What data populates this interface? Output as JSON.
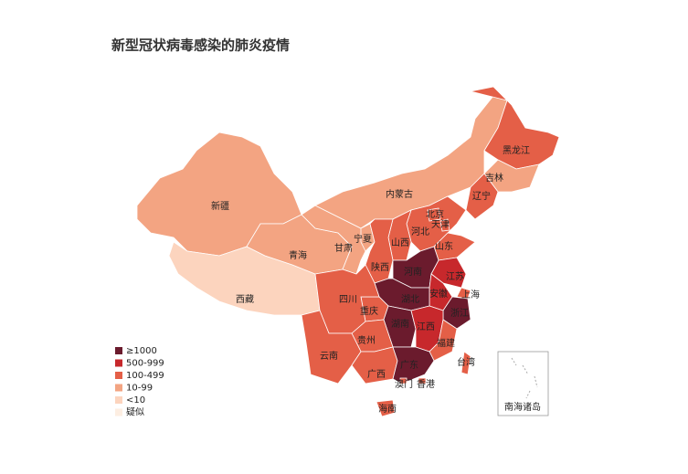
{
  "title": "新型冠状病毒感染的肺炎疫情",
  "legend": [
    {
      "label": "≥1000",
      "color": "#6b1b2d"
    },
    {
      "label": "500-999",
      "color": "#c7282c"
    },
    {
      "label": "100-499",
      "color": "#e45f47"
    },
    {
      "label": "10-99",
      "color": "#f3a482"
    },
    {
      "label": "<10",
      "color": "#fcd4be"
    },
    {
      "label": "疑似",
      "color": "#fdeee2"
    }
  ],
  "regions": [
    {
      "name": "新疆",
      "color": "#f3a482"
    },
    {
      "name": "西藏",
      "color": "#fcd4be"
    },
    {
      "name": "青海",
      "color": "#f3a482"
    },
    {
      "name": "甘肃",
      "color": "#f3a482"
    },
    {
      "name": "内蒙古",
      "color": "#f3a482"
    },
    {
      "name": "黑龙江",
      "color": "#e45f47"
    },
    {
      "name": "吉林",
      "color": "#f3a482"
    },
    {
      "name": "辽宁",
      "color": "#e45f47"
    },
    {
      "name": "河北",
      "color": "#e45f47"
    },
    {
      "name": "北京",
      "color": "#e45f47"
    },
    {
      "name": "天津",
      "color": "#e45f47"
    },
    {
      "name": "山西",
      "color": "#e45f47"
    },
    {
      "name": "山东",
      "color": "#e45f47"
    },
    {
      "name": "宁夏",
      "color": "#f3a482"
    },
    {
      "name": "陕西",
      "color": "#e45f47"
    },
    {
      "name": "河南",
      "color": "#6b1b2d"
    },
    {
      "name": "江苏",
      "color": "#c7282c"
    },
    {
      "name": "安徽",
      "color": "#c7282c"
    },
    {
      "name": "上海",
      "color": "#e45f47"
    },
    {
      "name": "浙江",
      "color": "#6b1b2d"
    },
    {
      "name": "湖北",
      "color": "#6b1b2d"
    },
    {
      "name": "重庆",
      "color": "#e45f47"
    },
    {
      "name": "四川",
      "color": "#e45f47"
    },
    {
      "name": "湖南",
      "color": "#6b1b2d"
    },
    {
      "name": "江西",
      "color": "#c7282c"
    },
    {
      "name": "福建",
      "color": "#e45f47"
    },
    {
      "name": "贵州",
      "color": "#e45f47"
    },
    {
      "name": "云南",
      "color": "#e45f47"
    },
    {
      "name": "广西",
      "color": "#e45f47"
    },
    {
      "name": "广东",
      "color": "#6b1b2d"
    },
    {
      "name": "台湾",
      "color": "#e45f47"
    },
    {
      "name": "海南",
      "color": "#e45f47"
    },
    {
      "name": "香港",
      "color": "#e45f47"
    },
    {
      "name": "澳门",
      "color": "#e45f47"
    }
  ],
  "inset_label": "南海诸岛"
}
